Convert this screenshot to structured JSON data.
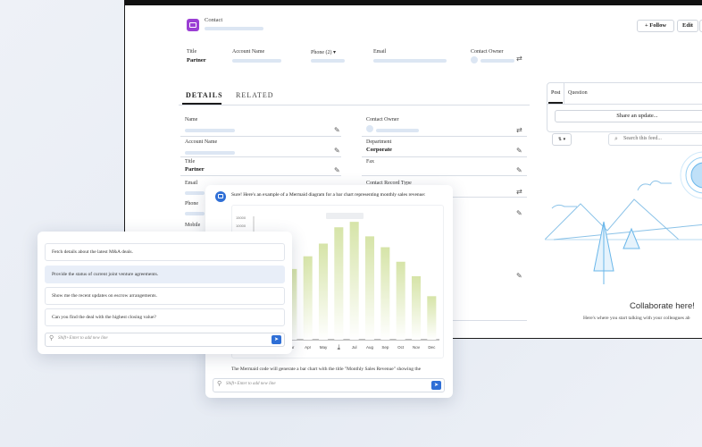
{
  "record": {
    "object_label": "Contact",
    "buttons": {
      "follow": "+ Follow",
      "edit": "Edit"
    },
    "highlights": [
      {
        "label": "Title",
        "value": "Partner"
      },
      {
        "label": "Account Name",
        "value": ""
      },
      {
        "label": "Phone (2) ▾",
        "value": ""
      },
      {
        "label": "Email",
        "value": ""
      },
      {
        "label": "Contact Owner",
        "value": ""
      }
    ],
    "tabs": [
      "DETAILS",
      "RELATED"
    ],
    "fields_left": [
      {
        "label": "Name",
        "value": ""
      },
      {
        "label": "Account Name",
        "value": ""
      },
      {
        "label": "Title",
        "value": "Partner"
      },
      {
        "label": "Email",
        "value": ""
      },
      {
        "label": "Phone",
        "value": ""
      },
      {
        "label": "Mobile",
        "value": ""
      }
    ],
    "fields_right": [
      {
        "label": "Contact Owner",
        "value": ""
      },
      {
        "label": "Department",
        "value": "Corporate"
      },
      {
        "label": "Fax",
        "value": ""
      },
      {
        "label": "Contact Record Type",
        "value": ""
      }
    ]
  },
  "feed": {
    "tabs": [
      "Post",
      "Question"
    ],
    "share_button": "Share an update...",
    "sort_label": "⇅ ▾",
    "search_placeholder": "Search this feed...",
    "empty_title": "Collaborate here!",
    "empty_subtitle": "Here's where you start talking with your colleagues ab"
  },
  "chat_left": {
    "suggestions": [
      "Fetch details about the latest M&A deals.",
      "Provide the status of current joint venture agreements.",
      "Show me the recent updates on escrow arrangements.",
      "Can you find the deal with the highest closing value?"
    ],
    "selected_index": 1,
    "input_placeholder": "Shift+Enter to add new line"
  },
  "chat_main": {
    "message": "Sure! Here's an example of a Mermaid diagram for a bar chart representing monthly sales revenue:",
    "footer_text": "The Mermaid code will generate a bar chart with the title \"Monthly Sales Revenue\" showing the",
    "input_placeholder": "Shift+Enter to add new line",
    "colors": {
      "bar": "#d6e4a8",
      "accent": "#2f6fd6"
    }
  },
  "chart_data": {
    "type": "bar",
    "categories": [
      "Jan",
      "Feb",
      "Mar",
      "Apr",
      "May",
      "Jun",
      "Jul",
      "Aug",
      "Sep",
      "Oct",
      "Nov",
      "Dec"
    ],
    "visible_tick_labels": [
      "",
      "",
      "ar",
      "Apr",
      "May",
      "",
      "Jul",
      "Aug",
      "Sep",
      "Oct",
      "Nov",
      "Dec"
    ],
    "values": [
      15000,
      17000,
      19500,
      23000,
      26500,
      31000,
      32500,
      28500,
      25500,
      21500,
      17500,
      12000
    ],
    "ytick_labels": [
      "15000",
      "10000"
    ],
    "ylim": [
      0,
      35000
    ]
  }
}
